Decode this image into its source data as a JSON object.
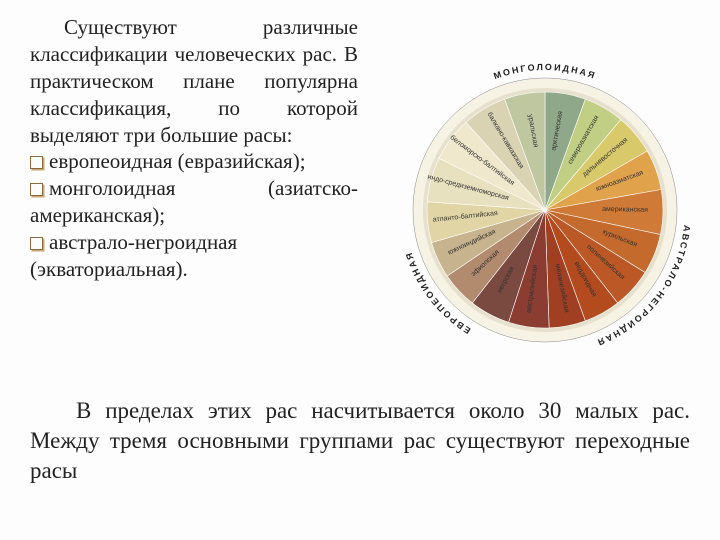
{
  "text_block": {
    "intro": "Существуют различные классификации человеческих рас. В практическом плане популярна классификация, по которой выделяют три большие расы:",
    "bullets": [
      {
        "label": "европеоидная (евразийская);"
      },
      {
        "label": "монголоидная (азиатско-американская);"
      },
      {
        "label": "австрало-негроидная (экваториальная)."
      }
    ],
    "font_color": "#222222",
    "bullet_border": "#8f6a38",
    "bullet_shadow": "#c9a876"
  },
  "bottom": {
    "text": "В пределах этих рас насчитывается около 30 малых рас. Между тремя основными группами рас существуют переходные расы"
  },
  "pie": {
    "type": "pie",
    "background": "#f6f2e4",
    "ring_inner": "#e6e0cc",
    "outline": "#888888",
    "arc_labels": [
      {
        "text": "МОНГОЛОИДНАЯ",
        "start_deg": -65,
        "end_deg": 65,
        "bold": true
      },
      {
        "text": "АВСТРАЛО-НЕГРОИДНАЯ",
        "start_deg": 80,
        "end_deg": 175,
        "bold": true
      },
      {
        "text": "ЕВРОПЕОИДНАЯ",
        "start_deg": 185,
        "end_deg": 280,
        "bold": true
      }
    ],
    "slices": [
      {
        "label": "арктическая",
        "color": "#8fa88a",
        "angle": 20
      },
      {
        "label": "североазиатская",
        "color": "#c0cf84",
        "angle": 20
      },
      {
        "label": "дальневосточная",
        "color": "#d8c96a",
        "angle": 20
      },
      {
        "label": "южноазиатская",
        "color": "#e0a24a",
        "angle": 20
      },
      {
        "label": "американская",
        "color": "#cf7a37",
        "angle": 22
      },
      {
        "label": "курильская",
        "color": "#c46a2c",
        "angle": 20
      },
      {
        "label": "полинезийская",
        "color": "#bb5826",
        "angle": 20
      },
      {
        "label": "веддоидная",
        "color": "#b34b1f",
        "angle": 18
      },
      {
        "label": "меланезийская",
        "color": "#a03f22",
        "angle": 18
      },
      {
        "label": "австралийская",
        "color": "#8b3d31",
        "angle": 20
      },
      {
        "label": "негрская",
        "color": "#7a4940",
        "angle": 20
      },
      {
        "label": "эфиопская",
        "color": "#b28a6e",
        "angle": 18
      },
      {
        "label": "южноиндийская",
        "color": "#c7b38e",
        "angle": 18
      },
      {
        "label": "атланто-балтийская",
        "color": "#e1d5a6",
        "angle": 20
      },
      {
        "label": "индо-средиземноморская",
        "color": "#e8e1c0",
        "angle": 22
      },
      {
        "label": "беломорско-балтийская",
        "color": "#efe8cd",
        "angle": 22
      },
      {
        "label": "балкано-кавказская",
        "color": "#d9d3b3",
        "angle": 22
      },
      {
        "label": "уральская",
        "color": "#bfc7a0",
        "angle": 20
      }
    ]
  }
}
